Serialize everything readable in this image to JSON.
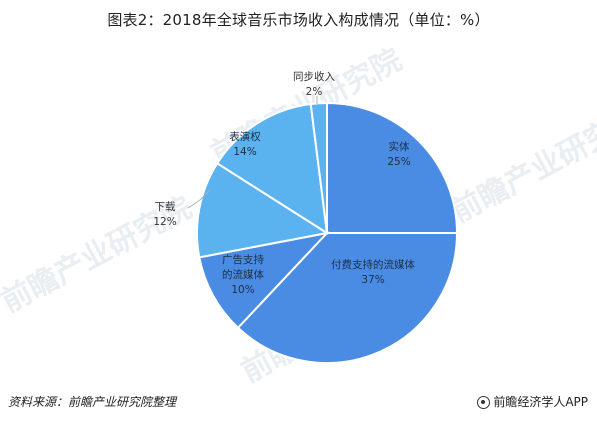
{
  "title": "图表2：2018年全球音乐市场收入构成情况（单位：%）",
  "footer": {
    "source": "资料来源：前瞻产业研究院整理",
    "brand": "前瞻经济学人APP"
  },
  "watermark": "前瞻产业研究院",
  "colors": {
    "slice_dark": "#4a90e2",
    "slice_light": "#59b5f0",
    "edge": "#ffffff",
    "leader": "#b0b0b0"
  },
  "chart_data": {
    "type": "pie",
    "title": "图表2：2018年全球音乐市场收入构成情况（单位：%）",
    "unit": "%",
    "slices": [
      {
        "label": "实体",
        "value": 25,
        "value_label": "25%",
        "color": "#4a8ce3"
      },
      {
        "label": "付费支持的流媒体",
        "value": 37,
        "value_label": "37%",
        "color": "#4a8ce3"
      },
      {
        "label": "广告支持的流媒体",
        "value": 10,
        "value_label": "10%",
        "color": "#4a8ce3"
      },
      {
        "label": "下载",
        "value": 12,
        "value_label": "12%",
        "color": "#5ab3ef"
      },
      {
        "label": "表演权",
        "value": 14,
        "value_label": "14%",
        "color": "#5ab3ef"
      },
      {
        "label": "同步收入",
        "value": 2,
        "value_label": "2%",
        "color": "#5ab3ef"
      }
    ],
    "legend": "none"
  }
}
